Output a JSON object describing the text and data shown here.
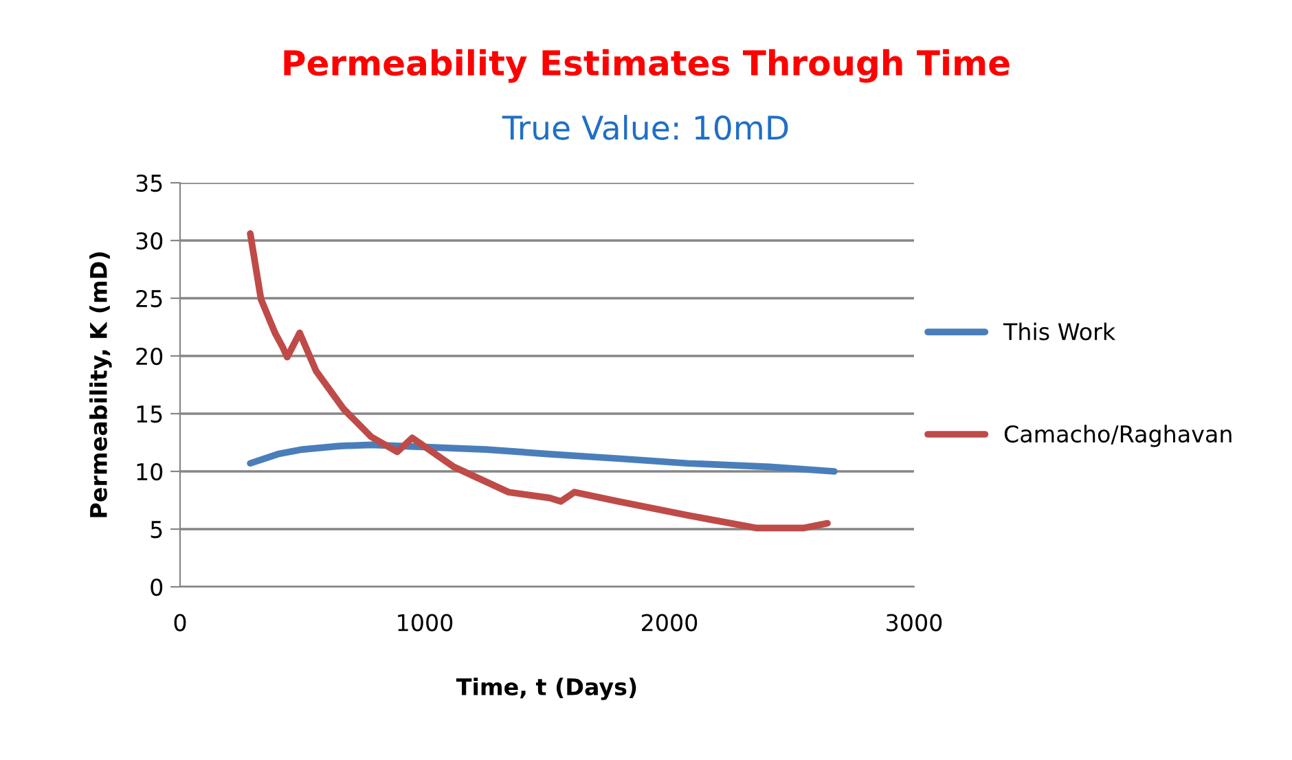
{
  "chart_data": {
    "type": "line",
    "title": "Permeability Estimates Through Time",
    "subtitle": "True Value: 10mD",
    "xlabel": "Time, t (Days)",
    "ylabel": "Permeability, K (mD)",
    "xlim": [
      0,
      3000
    ],
    "xticks": [
      0,
      1000,
      2000,
      3000
    ],
    "ylim": [
      0,
      35
    ],
    "yticks": [
      0,
      5,
      10,
      15,
      20,
      25,
      30,
      35
    ],
    "grid": "y",
    "legend": "right",
    "marker": "none",
    "line_style": "solid",
    "series": [
      {
        "name": "This Work",
        "color": "#4a7ebb",
        "x": [
          287,
          400,
          500,
          650,
          781,
          1006,
          1250,
          1511,
          1800,
          2073,
          2410,
          2674
        ],
        "values": [
          10.7,
          11.5,
          11.9,
          12.2,
          12.3,
          12.1,
          11.9,
          11.5,
          11.1,
          10.7,
          10.4,
          10.0
        ]
      },
      {
        "name": "Camacho/Raghavan",
        "color": "#be4b48",
        "x": [
          287,
          331,
          388,
          421,
          438,
          489,
          556,
          669,
          781,
          888,
          949,
          1118,
          1343,
          1511,
          1556,
          1612,
          1792,
          2073,
          2354,
          2551,
          2646
        ],
        "values": [
          30.6,
          24.9,
          22.0,
          20.7,
          19.9,
          22.0,
          18.7,
          15.4,
          13.0,
          11.7,
          12.9,
          10.4,
          8.2,
          7.7,
          7.4,
          8.2,
          7.4,
          6.2,
          5.1,
          5.1,
          5.5
        ]
      }
    ]
  }
}
